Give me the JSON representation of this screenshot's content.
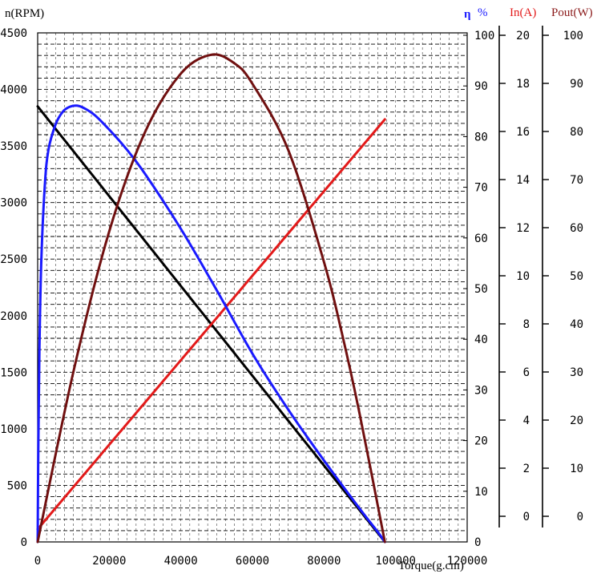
{
  "chart_data": {
    "type": "line",
    "xlabel": "Torque(g.cm)",
    "xlim": [
      0,
      120000
    ],
    "x_ticks": [
      "0",
      "20000",
      "40000",
      "60000",
      "80000",
      "100000",
      "120000"
    ],
    "axes": {
      "speed": {
        "label": "n(RPM)",
        "color": "#000000",
        "range": [
          0,
          4500
        ],
        "ticks": [
          "0",
          "500",
          "1000",
          "1500",
          "2000",
          "2500",
          "3000",
          "3500",
          "4000",
          "4500"
        ]
      },
      "efficiency": {
        "label_symbol": "η",
        "label_unit": "%",
        "color": "#1a1aff",
        "range": [
          0,
          100
        ],
        "ticks": [
          "0",
          "10",
          "20",
          "30",
          "40",
          "50",
          "60",
          "70",
          "80",
          "90",
          "100"
        ]
      },
      "current": {
        "label": "In(A)",
        "color": "#e31a1a",
        "range": [
          0,
          20
        ],
        "ticks": [
          "0",
          "2",
          "4",
          "6",
          "8",
          "10",
          "12",
          "14",
          "16",
          "18",
          "20"
        ]
      },
      "power": {
        "label": "Pout(W)",
        "color": "#8b1a1a",
        "range": [
          0,
          100
        ],
        "ticks": [
          "0",
          "10",
          "20",
          "30",
          "40",
          "50",
          "60",
          "70",
          "80",
          "90",
          "100"
        ]
      }
    },
    "series": [
      {
        "axis": "speed",
        "color": "#000000",
        "points": [
          [
            0,
            3850
          ],
          [
            97000,
            0
          ]
        ]
      },
      {
        "axis": "current",
        "color": "#e31a1a",
        "points": [
          [
            0,
            0.5
          ],
          [
            97000,
            16.6
          ]
        ]
      },
      {
        "axis": "efficiency",
        "color": "#1a1aff",
        "points": [
          [
            0,
            0
          ],
          [
            200,
            20
          ],
          [
            500,
            38
          ],
          [
            1000,
            55
          ],
          [
            2000,
            70
          ],
          [
            3000,
            77
          ],
          [
            5000,
            82
          ],
          [
            7000,
            84.5
          ],
          [
            9000,
            85.5
          ],
          [
            11000,
            85.7
          ],
          [
            13000,
            85.2
          ],
          [
            16000,
            83.8
          ],
          [
            20000,
            81
          ],
          [
            25000,
            77
          ],
          [
            30000,
            72.3
          ],
          [
            40000,
            61.5
          ],
          [
            50000,
            49.5
          ],
          [
            60000,
            37
          ],
          [
            70000,
            26
          ],
          [
            80000,
            16
          ],
          [
            90000,
            6.5
          ],
          [
            95000,
            2
          ],
          [
            97000,
            0
          ]
        ]
      },
      {
        "axis": "power",
        "color": "#701010",
        "points": [
          [
            0,
            0
          ],
          [
            10000,
            33.5
          ],
          [
            20000,
            61
          ],
          [
            30000,
            80.5
          ],
          [
            40000,
            92
          ],
          [
            48500,
            95.7
          ],
          [
            55000,
            94
          ],
          [
            60000,
            90
          ],
          [
            70000,
            77
          ],
          [
            80000,
            55
          ],
          [
            85000,
            41
          ],
          [
            90000,
            25
          ],
          [
            97000,
            0
          ]
        ]
      }
    ]
  }
}
